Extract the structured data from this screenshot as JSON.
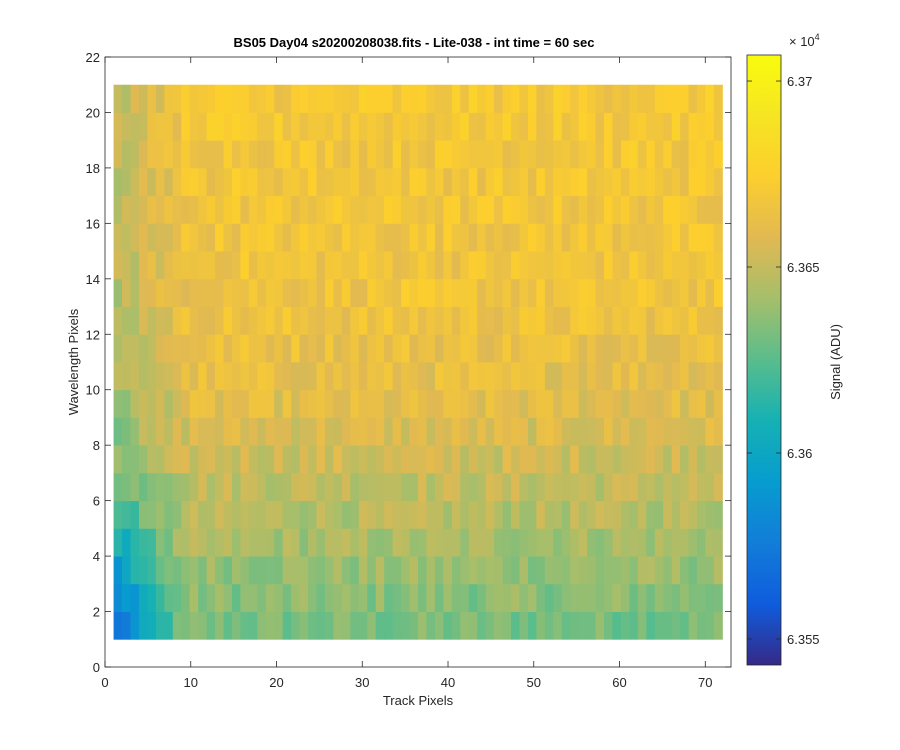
{
  "chart_data": {
    "type": "heatmap",
    "title": "BS05 Day04  s20200208038.fits - Lite-038 - int time = 60 sec",
    "xlabel": "Track Pixels",
    "ylabel": "Wavelength Pixels",
    "xlim": [
      0,
      73
    ],
    "ylim": [
      0,
      22
    ],
    "x_ticks": [
      "0",
      "10",
      "20",
      "30",
      "40",
      "50",
      "60",
      "70"
    ],
    "y_ticks": [
      "0",
      "2",
      "4",
      "6",
      "8",
      "10",
      "12",
      "14",
      "16",
      "18",
      "20",
      "22"
    ],
    "x_range": [
      1,
      72
    ],
    "y_range": [
      1,
      21
    ],
    "row_values": [
      {
        "y": 1,
        "mean": 63630
      },
      {
        "y": 3,
        "mean": 63637
      },
      {
        "y": 5,
        "mean": 63644
      },
      {
        "y": 7,
        "mean": 63651
      },
      {
        "y": 9,
        "mean": 63658
      },
      {
        "y": 11,
        "mean": 63663
      },
      {
        "y": 13,
        "mean": 63666
      },
      {
        "y": 15,
        "mean": 63667
      },
      {
        "y": 17,
        "mean": 63668
      },
      {
        "y": 19,
        "mean": 63669
      },
      {
        "y": 21,
        "mean": 63670
      }
    ],
    "column_trend": "values lower at small Track Pixels (x < 10), highest near x = 40-60",
    "colorbar": {
      "label": "Signal (ADU)",
      "exponent_label": "× 10",
      "exponent": "4",
      "min": 63543,
      "max": 63707,
      "ticks": [
        "6.355",
        "6.36",
        "6.365",
        "6.37"
      ],
      "tick_values": [
        63550,
        63600,
        63650,
        63700
      ],
      "colormap": "parula"
    },
    "grid": false
  }
}
